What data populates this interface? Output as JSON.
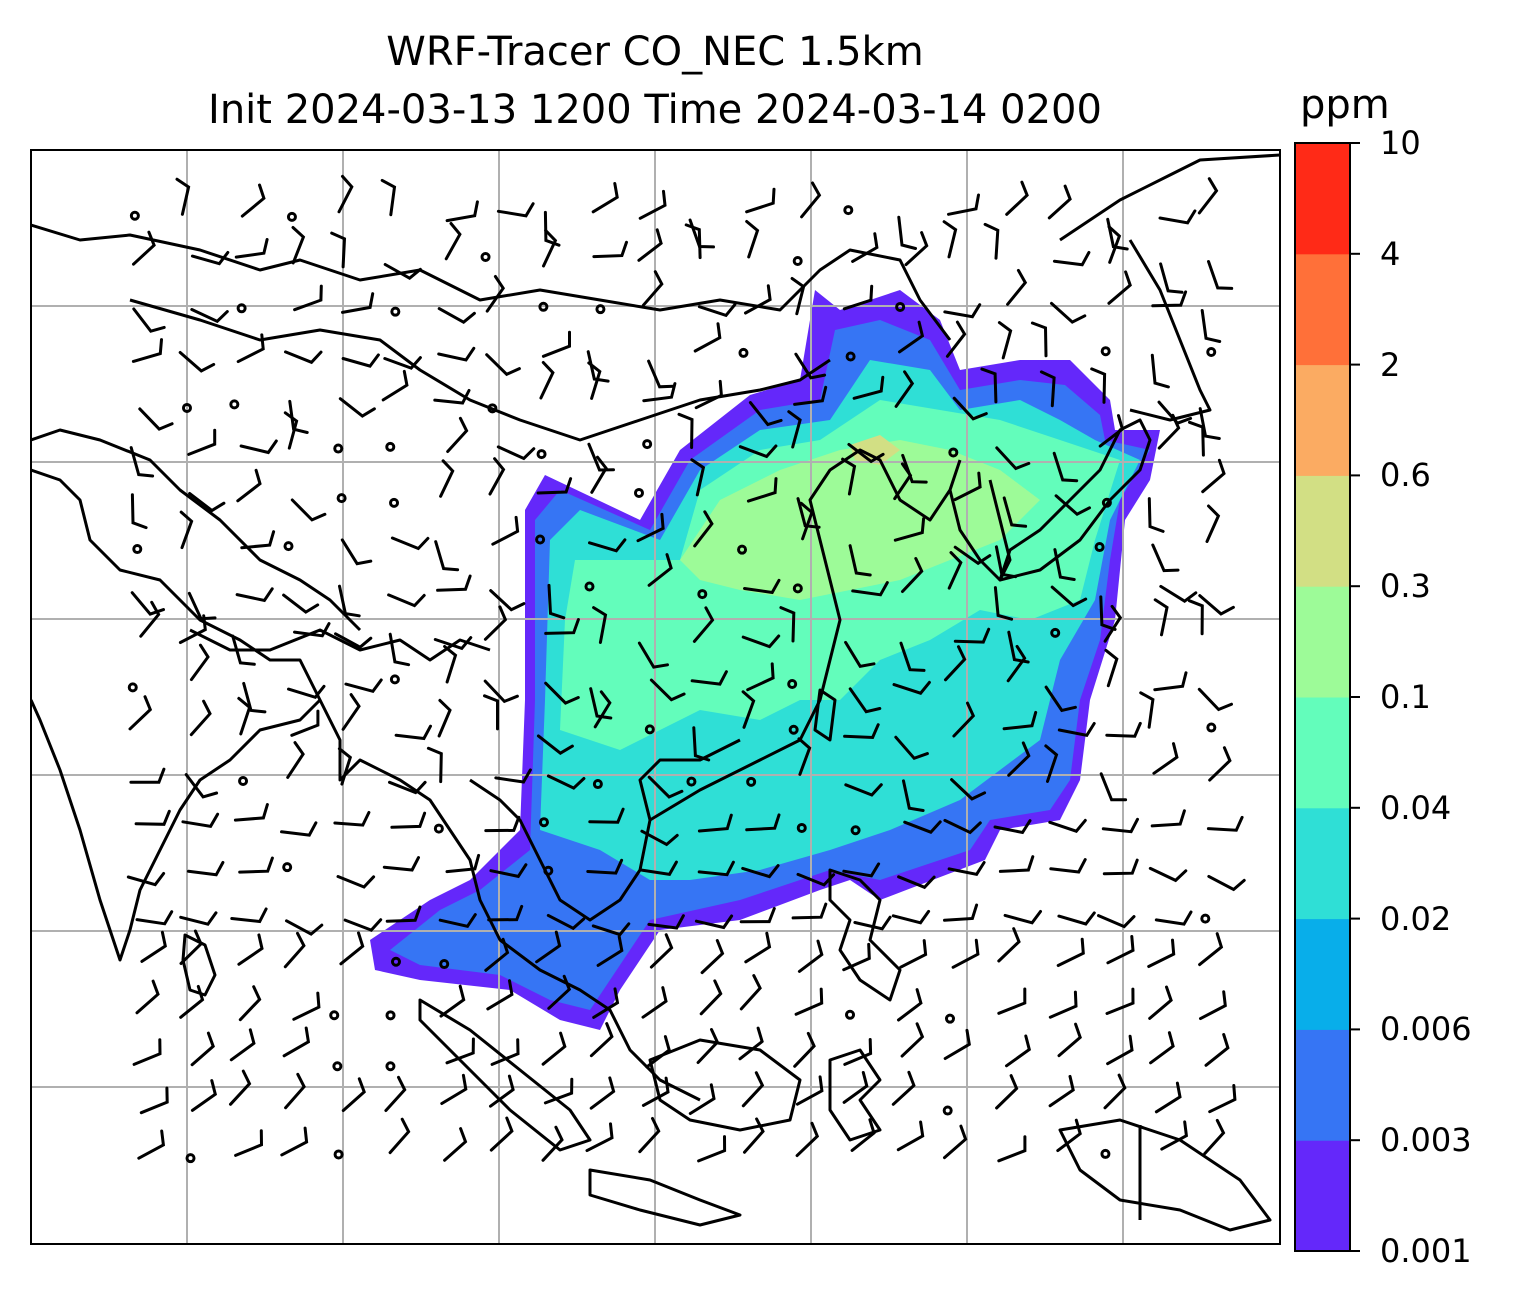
{
  "title": {
    "line1": "WRF-Tracer CO_NEC 1.5km",
    "line2": "Init 2024-03-13 1200 Time 2024-03-14 0200"
  },
  "colorbar": {
    "unit": "ppm",
    "levels": [
      "0.001",
      "0.003",
      "0.006",
      "0.02",
      "0.04",
      "0.1",
      "0.3",
      "0.6",
      "2",
      "4",
      "10"
    ],
    "colors": [
      "#6428fa",
      "#3675f4",
      "#08aeea",
      "#2fdfd6",
      "#63fdbb",
      "#9dfb98",
      "#d2df84",
      "#fbab62",
      "#ff7039",
      "#ff2a17"
    ]
  },
  "map": {
    "grid": true,
    "overlay": "wind barbs",
    "plume_colors": [
      "#6428fa",
      "#3675f4",
      "#2fdfd6",
      "#63fdbb",
      "#9dfb98",
      "#d2df84"
    ]
  }
}
